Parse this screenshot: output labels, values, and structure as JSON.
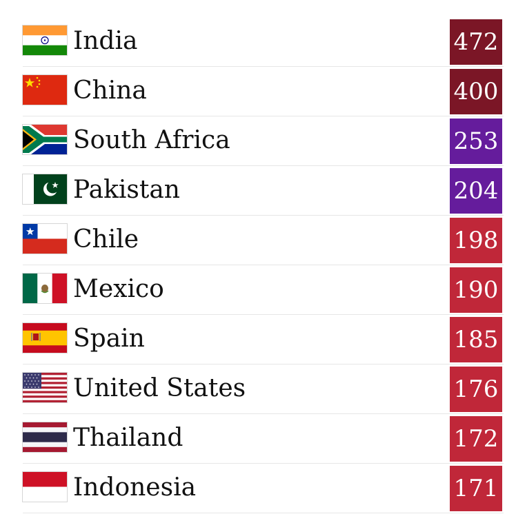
{
  "rows": [
    {
      "country": "India",
      "value": "472",
      "flag": "india-flag-icon",
      "color": "#7b1626"
    },
    {
      "country": "China",
      "value": "400",
      "flag": "china-flag-icon",
      "color": "#7b1626"
    },
    {
      "country": "South Africa",
      "value": "253",
      "flag": "south-africa-flag-icon",
      "color": "#651c9c"
    },
    {
      "country": "Pakistan",
      "value": "204",
      "flag": "pakistan-flag-icon",
      "color": "#651c9c"
    },
    {
      "country": "Chile",
      "value": "198",
      "flag": "chile-flag-icon",
      "color": "#c02739"
    },
    {
      "country": "Mexico",
      "value": "190",
      "flag": "mexico-flag-icon",
      "color": "#c02739"
    },
    {
      "country": "Spain",
      "value": "185",
      "flag": "spain-flag-icon",
      "color": "#c02739"
    },
    {
      "country": "United States",
      "value": "176",
      "flag": "united-states-flag-icon",
      "color": "#c02739"
    },
    {
      "country": "Thailand",
      "value": "172",
      "flag": "thailand-flag-icon",
      "color": "#c02739"
    },
    {
      "country": "Indonesia",
      "value": "171",
      "flag": "indonesia-flag-icon",
      "color": "#c02739"
    }
  ]
}
